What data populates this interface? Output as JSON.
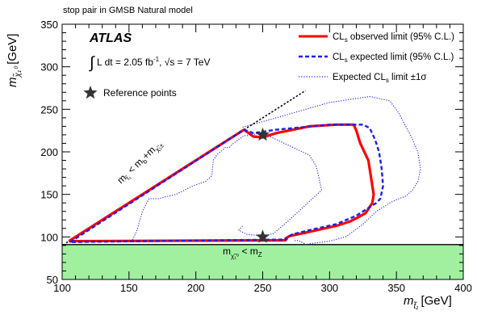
{
  "chart_data": {
    "type": "line",
    "title": "stop pair in GMSB Natural model",
    "experiment": "ATLAS",
    "luminosity_text": "L dt = 2.05 fb",
    "luminosity_sup": "-1",
    "energy_text": ", √s = 7 TeV",
    "xlabel": "m",
    "xlabel_sub": "t̃₁",
    "xlabel_unit": "[GeV]",
    "ylabel": "m",
    "ylabel_sub": "χ̃₁⁰",
    "ylabel_unit": "[GeV]",
    "xlim": [
      100,
      400
    ],
    "ylim": [
      50,
      350
    ],
    "xticks": [
      100,
      150,
      200,
      250,
      300,
      350,
      400
    ],
    "yticks": [
      50,
      100,
      150,
      200,
      250,
      300,
      350
    ],
    "xtick_labels": [
      "100",
      "150",
      "200",
      "250",
      "300",
      "350",
      "400"
    ],
    "ytick_labels": [
      "50",
      "100",
      "150",
      "200",
      "250",
      "300",
      "350"
    ],
    "legend": {
      "placement": "top-right",
      "entries": [
        {
          "label": "CL",
          "sub": "s",
          "rest": " observed limit (95% C.L.)",
          "color": "#ff0000",
          "style": "solid"
        },
        {
          "label": "CL",
          "sub": "s",
          "rest": " expected limit (95% C.L.)",
          "color": "#1e1ee6",
          "style": "dashed"
        },
        {
          "label": "Expected CL",
          "sub": "s",
          "rest": " limit ±1σ",
          "color": "#1e1ee6",
          "style": "dotted"
        }
      ]
    },
    "reference_points_label": "Reference points",
    "reference_points": [
      [
        250,
        220
      ],
      [
        250,
        100
      ]
    ],
    "excluded_region": {
      "label": "m",
      "label_sub": "χ̃₁⁰",
      "label_rest": " < m",
      "label_sub2": "Z",
      "color": "#a0f0a0",
      "y_range": [
        50,
        91
      ]
    },
    "kinematic_boundary": {
      "label": "m",
      "label_sub": "t̃₁",
      "label_rest": " < m",
      "label_sub2": "b",
      "label_rest2": "+m",
      "label_sub3": "χ̃₁±",
      "points": [
        [
          103,
          93
        ],
        [
          282,
          272
        ]
      ]
    },
    "series": [
      {
        "name": "CLs observed limit (95% C.L.)",
        "style": "solid",
        "color": "#ff0000",
        "x": [
          105,
          236,
          243,
          250,
          260,
          285,
          305,
          318,
          320,
          323,
          326,
          329,
          331,
          333,
          332,
          327,
          320,
          315,
          305,
          285,
          270,
          267,
          267,
          105
        ],
        "y": [
          95,
          226,
          218,
          217,
          222,
          230,
          232,
          232,
          225,
          210,
          200,
          190,
          170,
          150,
          140,
          128,
          122,
          118,
          113,
          106,
          101,
          98,
          96,
          95
        ]
      },
      {
        "name": "CLs expected limit (95% C.L.)",
        "style": "dashed",
        "color": "#1e1ee6",
        "x": [
          106,
          236,
          243,
          260,
          300,
          325,
          330,
          333,
          335,
          337,
          338,
          339,
          340,
          338,
          335,
          330,
          320,
          305,
          285,
          272,
          268,
          268,
          106
        ],
        "y": [
          94,
          226,
          222,
          226,
          232,
          232,
          228,
          218,
          210,
          200,
          190,
          180,
          160,
          145,
          140,
          135,
          125,
          115,
          108,
          103,
          99,
          97,
          94
        ]
      },
      {
        "name": "Expected CLs limit ±1σ (outer)",
        "style": "dotted",
        "color": "#1e1ee6",
        "x": [
          235,
          260,
          300,
          330,
          345,
          352,
          357,
          362,
          366,
          368,
          366,
          362,
          357,
          352,
          345,
          335,
          325,
          312,
          300,
          290,
          285,
          283,
          282,
          282,
          280,
          278,
          275,
          273
        ],
        "y": [
          229,
          240,
          258,
          265,
          260,
          245,
          230,
          215,
          200,
          180,
          165,
          155,
          148,
          145,
          140,
          130,
          115,
          100,
          95,
          93,
          92,
          91,
          91,
          92,
          93,
          95,
          96,
          95
        ]
      },
      {
        "name": "Expected CLs limit ±1σ (inner)",
        "style": "dotted",
        "color": "#1e1ee6",
        "x": [
          152,
          156,
          160,
          165,
          172,
          185,
          198,
          207,
          212,
          213,
          216,
          222,
          225,
          228,
          236,
          250,
          285,
          290,
          292,
          294,
          270,
          258,
          253,
          250,
          245,
          238,
          232,
          235
        ],
        "y": [
          94,
          108,
          130,
          145,
          145,
          150,
          160,
          165,
          172,
          190,
          197,
          205,
          205,
          210,
          219,
          222,
          196,
          183,
          170,
          155,
          120,
          104,
          102,
          102,
          102,
          103,
          108,
          113
        ]
      }
    ]
  }
}
